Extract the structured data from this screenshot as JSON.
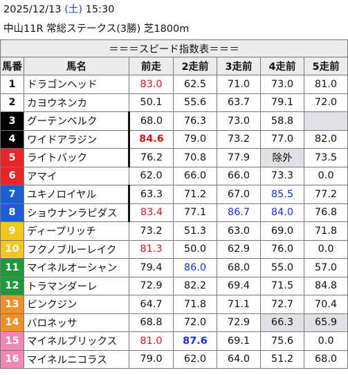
{
  "header": {
    "date": "2025/12/13",
    "day_open": "(",
    "day": "土",
    "day_close": ")",
    "time": "15:30",
    "race": "中山11R 常総ステークス(3勝) 芝1800m"
  },
  "table": {
    "title": "＝＝＝スピード指数表＝＝＝",
    "columns": [
      "馬番",
      "馬名",
      "前走",
      "2走前",
      "3走前",
      "4走前",
      "5走前"
    ],
    "rows": [
      {
        "num": "1",
        "name": "ドラゴンヘッド",
        "vals": [
          "83.0",
          "62.5",
          "71.0",
          "73.0",
          "81.0"
        ]
      },
      {
        "num": "2",
        "name": "カヨウネンカ",
        "vals": [
          "50.1",
          "55.6",
          "63.7",
          "79.1",
          "72.0"
        ]
      },
      {
        "num": "3",
        "name": "グーテンベルク",
        "vals": [
          "68.0",
          "76.3",
          "73.0",
          "58.8",
          ""
        ]
      },
      {
        "num": "4",
        "name": "ワイドアラジン",
        "vals": [
          "84.6",
          "79.0",
          "73.2",
          "77.0",
          "82.0"
        ]
      },
      {
        "num": "5",
        "name": "ライトバック",
        "vals": [
          "76.2",
          "70.8",
          "77.9",
          "除外",
          "73.5"
        ]
      },
      {
        "num": "6",
        "name": "アマイ",
        "vals": [
          "62.0",
          "66.0",
          "66.0",
          "73.3",
          "0.0"
        ]
      },
      {
        "num": "7",
        "name": "ユキノロイヤル",
        "vals": [
          "63.3",
          "71.2",
          "67.0",
          "85.5",
          "77.2"
        ]
      },
      {
        "num": "8",
        "name": "ショウナンラピダス",
        "vals": [
          "83.4",
          "77.1",
          "86.7",
          "84.0",
          "76.8"
        ]
      },
      {
        "num": "9",
        "name": "ディープリッチ",
        "vals": [
          "73.2",
          "51.3",
          "63.0",
          "69.0",
          "71.8"
        ]
      },
      {
        "num": "10",
        "name": "フクノブルーレイク",
        "vals": [
          "81.3",
          "50.0",
          "62.9",
          "76.0",
          "0.0"
        ]
      },
      {
        "num": "11",
        "name": "マイネルオーシャン",
        "vals": [
          "79.4",
          "86.0",
          "68.0",
          "55.0",
          "57.0"
        ]
      },
      {
        "num": "12",
        "name": "トラマンダーレ",
        "vals": [
          "72.9",
          "82.2",
          "69.4",
          "71.5",
          "84.8"
        ]
      },
      {
        "num": "13",
        "name": "ピンクジン",
        "vals": [
          "64.7",
          "71.8",
          "71.1",
          "72.7",
          "70.4"
        ]
      },
      {
        "num": "14",
        "name": "バロネッサ",
        "vals": [
          "68.8",
          "72.0",
          "72.9",
          "66.3",
          "65.9"
        ]
      },
      {
        "num": "15",
        "name": "マイネルブリックス",
        "vals": [
          "81.0",
          "87.6",
          "69.1",
          "75.6",
          "0.0"
        ]
      },
      {
        "num": "16",
        "name": "マイネルニコラス",
        "vals": [
          "79.0",
          "62.0",
          "64.0",
          "51.2",
          "68.0"
        ]
      }
    ]
  },
  "colors": {
    "frame1": "#ffffff",
    "frame2": "#000000",
    "frame3": "#e8262a",
    "frame4": "#1d5fd0",
    "frame5": "#f2c81e",
    "frame6": "#1f9a3a",
    "frame7": "#f0902a",
    "frame8": "#f08ab4",
    "highlight_red": "#e01414",
    "highlight_blue": "#1a2ee0",
    "gray_cell": "#e0e0e6"
  }
}
